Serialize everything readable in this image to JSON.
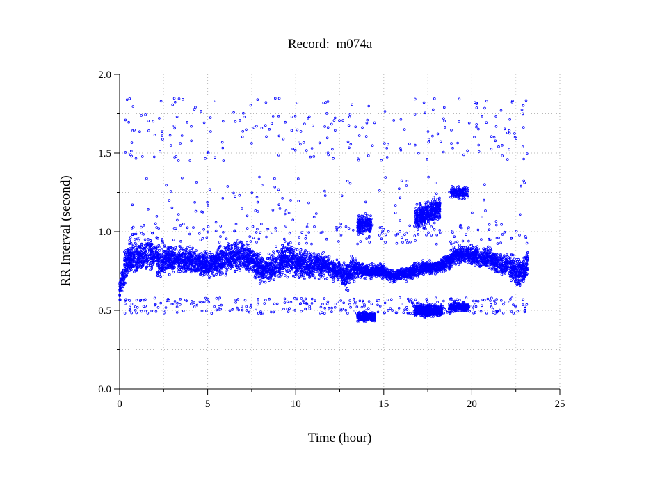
{
  "chart_data": {
    "type": "scatter",
    "title": "Record:  m074a",
    "xlabel": "Time (hour)",
    "ylabel": "RR Interval (second)",
    "xlim": [
      0,
      25
    ],
    "ylim": [
      0.0,
      2.0
    ],
    "xticks": [
      "0",
      "5",
      "10",
      "15",
      "20",
      "25"
    ],
    "yticks": [
      "0.0",
      "0.5",
      "1.0",
      "1.5",
      "2.0"
    ],
    "grid": true,
    "marker_color": "#0000ff",
    "bands": [
      {
        "x": [
          0.0,
          0.3,
          0.6,
          1.0,
          1.5,
          2.0,
          2.3,
          2.7,
          3.2,
          3.6,
          4.0,
          4.5,
          5.0,
          5.5,
          6.0,
          6.5,
          7.0,
          7.5,
          7.8,
          8.2,
          8.7,
          9.2,
          9.7,
          10.2,
          10.7,
          11.2,
          11.7,
          12.2,
          12.6,
          12.9,
          13.2,
          13.6,
          14.0,
          14.5,
          15.0,
          15.3,
          15.6,
          16.0,
          16.5,
          17.0,
          17.5,
          18.0,
          18.5,
          19.0,
          19.5,
          20.0,
          20.5,
          21.0,
          21.5,
          22.0,
          22.5,
          22.8,
          23.0,
          23.2
        ],
        "center": [
          0.62,
          0.78,
          0.84,
          0.83,
          0.86,
          0.84,
          0.8,
          0.82,
          0.83,
          0.82,
          0.81,
          0.8,
          0.79,
          0.81,
          0.82,
          0.84,
          0.85,
          0.83,
          0.78,
          0.76,
          0.78,
          0.82,
          0.83,
          0.8,
          0.79,
          0.79,
          0.78,
          0.76,
          0.74,
          0.7,
          0.77,
          0.76,
          0.75,
          0.75,
          0.75,
          0.73,
          0.72,
          0.73,
          0.74,
          0.76,
          0.77,
          0.78,
          0.8,
          0.84,
          0.86,
          0.85,
          0.84,
          0.83,
          0.8,
          0.79,
          0.75,
          0.74,
          0.76,
          0.8
        ],
        "spread": [
          0.1,
          0.13,
          0.14,
          0.14,
          0.15,
          0.14,
          0.12,
          0.12,
          0.12,
          0.12,
          0.11,
          0.11,
          0.11,
          0.12,
          0.12,
          0.13,
          0.13,
          0.12,
          0.11,
          0.1,
          0.12,
          0.13,
          0.13,
          0.12,
          0.11,
          0.11,
          0.1,
          0.09,
          0.1,
          0.12,
          0.1,
          0.07,
          0.06,
          0.06,
          0.06,
          0.05,
          0.05,
          0.05,
          0.06,
          0.06,
          0.06,
          0.06,
          0.07,
          0.08,
          0.08,
          0.08,
          0.09,
          0.09,
          0.09,
          0.1,
          0.12,
          0.12,
          0.12,
          0.12
        ],
        "count": 5200
      },
      {
        "x": [
          13.5,
          14.5
        ],
        "center": [
          0.46,
          0.46
        ],
        "spread": [
          0.04,
          0.04
        ],
        "count": 260
      },
      {
        "x": [
          13.5,
          14.3
        ],
        "center": [
          1.05,
          1.05
        ],
        "spread": [
          0.08,
          0.08
        ],
        "count": 170
      },
      {
        "x": [
          16.8,
          18.2
        ],
        "center": [
          1.08,
          1.15
        ],
        "spread": [
          0.1,
          0.1
        ],
        "count": 430
      },
      {
        "x": [
          16.8,
          18.3
        ],
        "center": [
          0.5,
          0.5
        ],
        "spread": [
          0.05,
          0.05
        ],
        "count": 520
      },
      {
        "x": [
          18.7,
          19.8
        ],
        "center": [
          0.52,
          0.52
        ],
        "spread": [
          0.04,
          0.04
        ],
        "count": 200
      },
      {
        "x": [
          18.8,
          19.8
        ],
        "center": [
          1.25,
          1.25
        ],
        "spread": [
          0.05,
          0.05
        ],
        "count": 160
      }
    ],
    "scatter": [
      {
        "x": [
          0.3,
          23.2
        ],
        "y": [
          1.45,
          1.85
        ],
        "count": 230
      },
      {
        "x": [
          0.3,
          23.2
        ],
        "y": [
          1.05,
          1.35
        ],
        "count": 90
      },
      {
        "x": [
          0.3,
          23.2
        ],
        "y": [
          0.48,
          0.58
        ],
        "count": 320
      },
      {
        "x": [
          0.3,
          23.2
        ],
        "y": [
          0.92,
          1.05
        ],
        "count": 180
      }
    ]
  }
}
